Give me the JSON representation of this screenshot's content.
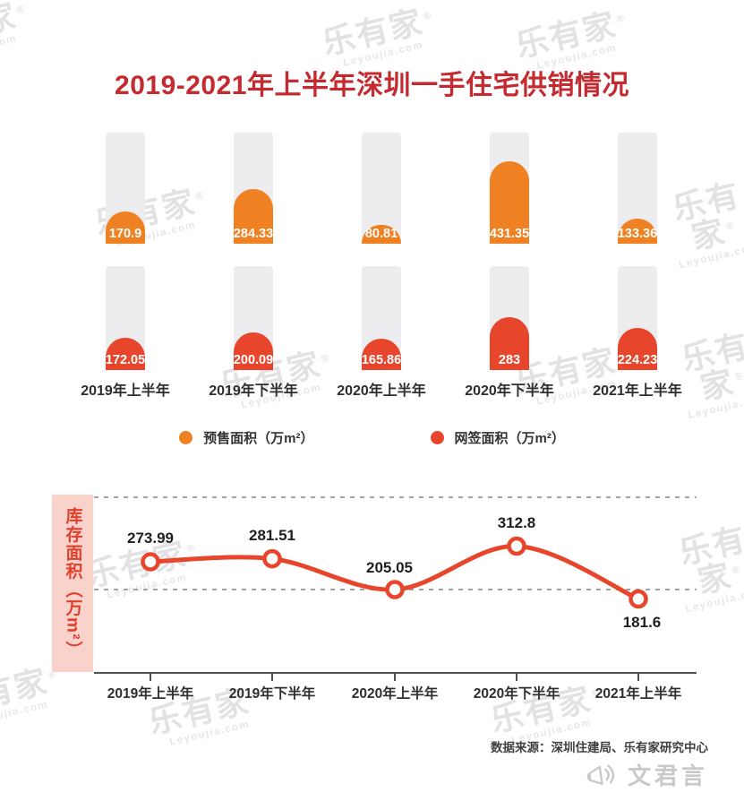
{
  "title": "2019-2021年上半年深圳一手住宅供销情况",
  "watermark": {
    "brand": "乐有家",
    "registered": "®",
    "sub": "Leyoujia.com"
  },
  "colors": {
    "title_red": "#C32B30",
    "presale_orange": "#F08122",
    "signed_red": "#E8462C",
    "line_red": "#E8462C",
    "inventory_bg_pink": "#F9D2CC",
    "inventory_text_red": "#E23F2B",
    "track_gray": "#EDEDEF",
    "watermark_gray": "#C7C7CB"
  },
  "chart_data": [
    {
      "type": "bar",
      "title": "2019-2021年上半年深圳一手住宅供销情况",
      "categories": [
        "2019年上半年",
        "2019年下半年",
        "2020年上半年",
        "2020年下半年",
        "2021年上半年"
      ],
      "series": [
        {
          "name": "预售面积（万m²）",
          "color": "#F08122",
          "values": [
            170.9,
            284.33,
            80.81,
            431.35,
            133.36
          ]
        },
        {
          "name": "网签面积（万m²）",
          "color": "#E8462C",
          "values": [
            172.05,
            200.09,
            165.86,
            283,
            224.23
          ]
        }
      ],
      "legend_position": "bottom",
      "grid": false,
      "value_labels": "inside-bottom, white"
    },
    {
      "type": "line",
      "categories": [
        "2019年上半年",
        "2019年下半年",
        "2020年上半年",
        "2020年下半年",
        "2021年上半年"
      ],
      "values": [
        273.99,
        281.51,
        205.05,
        312.8,
        181.6
      ],
      "ylabel": "库存面积（万m²）",
      "color": "#E8462C",
      "grid": "two horizontal dashed gridlines",
      "markers": "open circles"
    }
  ],
  "footer": {
    "source": "数据来源：深圳住建局、乐有家研究中心",
    "logo_text": "文君言"
  }
}
